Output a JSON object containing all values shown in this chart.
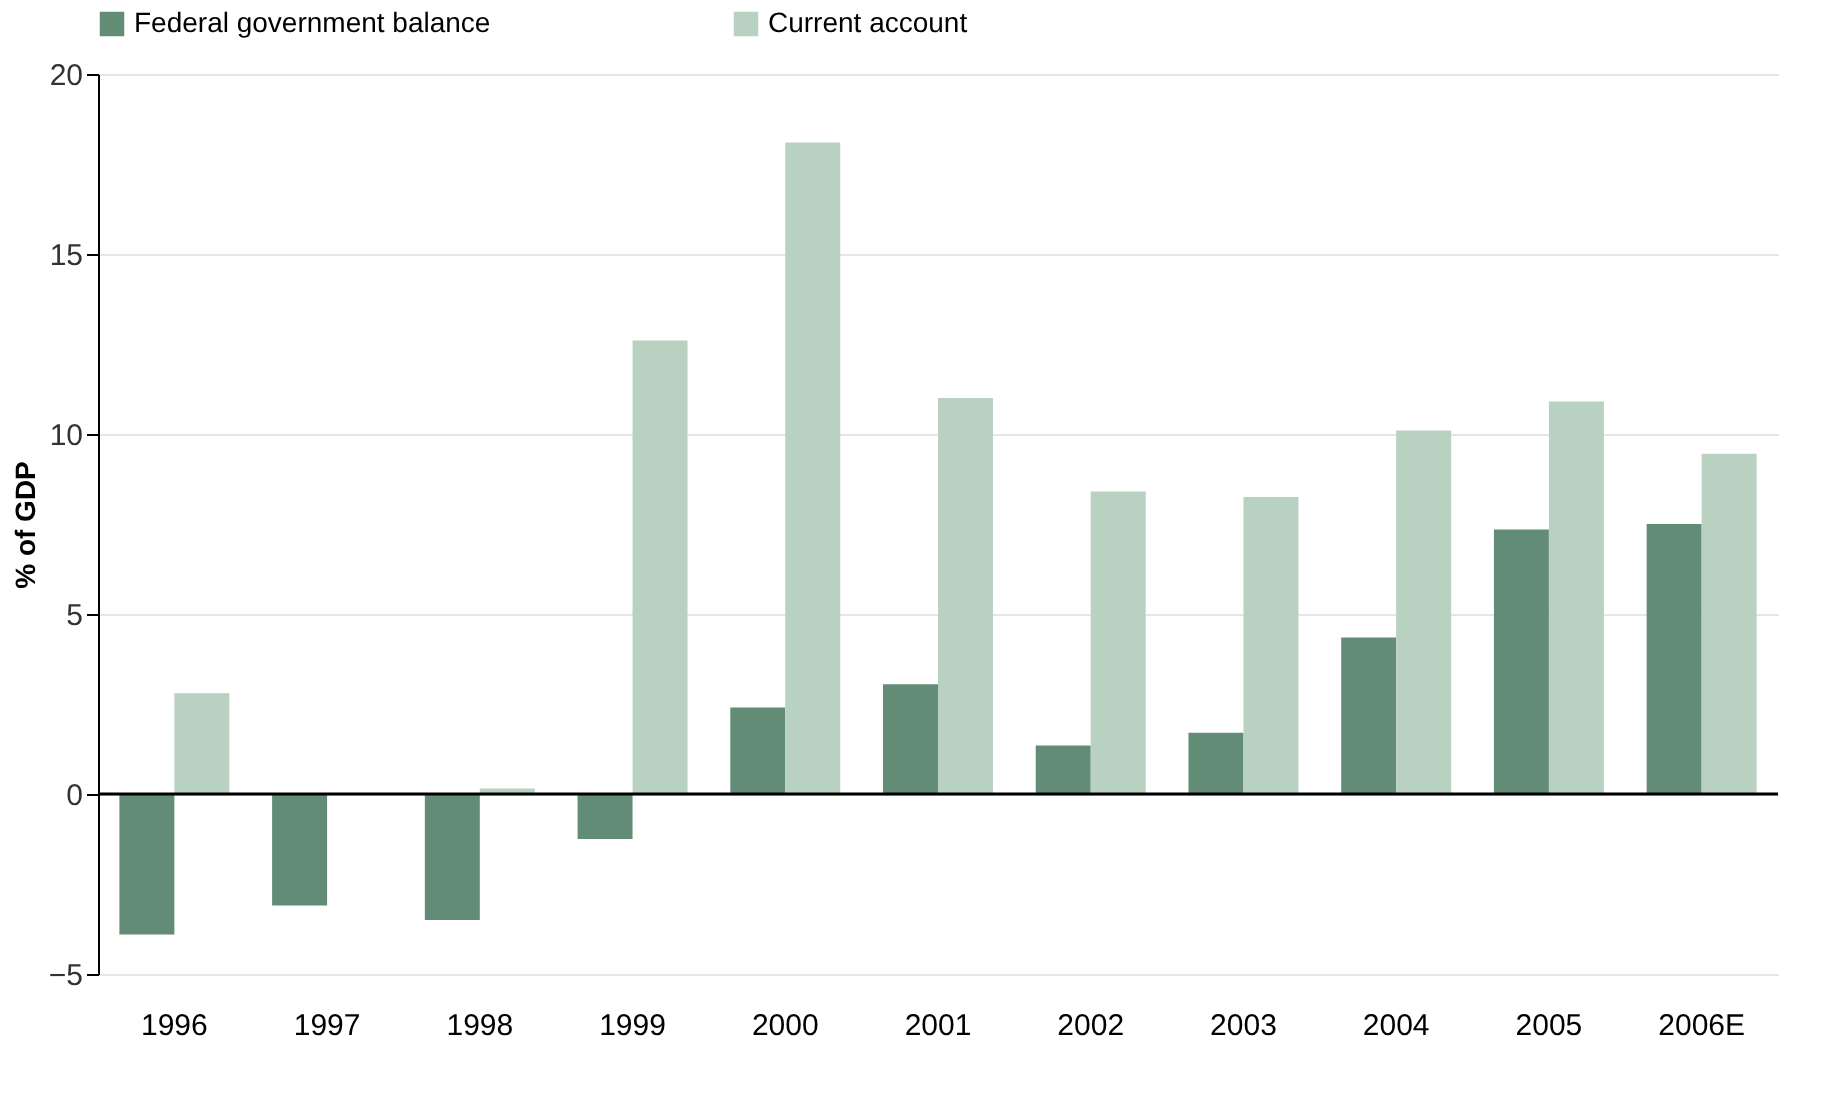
{
  "chart_data": {
    "type": "bar",
    "ylabel": "% of GDP",
    "categories": [
      "1996",
      "1997",
      "1998",
      "1999",
      "2000",
      "2001",
      "2002",
      "2003",
      "2004",
      "2005",
      "2006E"
    ],
    "series": [
      {
        "name": "Federal government balance",
        "color": "#638c76",
        "values": [
          -3.9,
          -3.1,
          -3.5,
          -1.25,
          2.4,
          3.05,
          1.35,
          1.7,
          4.35,
          7.35,
          7.5
        ]
      },
      {
        "name": "Current account",
        "color": "#b8d1c1",
        "values": [
          2.8,
          null,
          0.15,
          12.6,
          18.1,
          11.0,
          8.4,
          8.25,
          10.1,
          10.9,
          9.45
        ]
      }
    ],
    "ylim": [
      -5,
      20
    ],
    "yticks": [
      -5,
      0,
      5,
      10,
      15,
      20
    ],
    "grid": "y",
    "legend": "top"
  }
}
